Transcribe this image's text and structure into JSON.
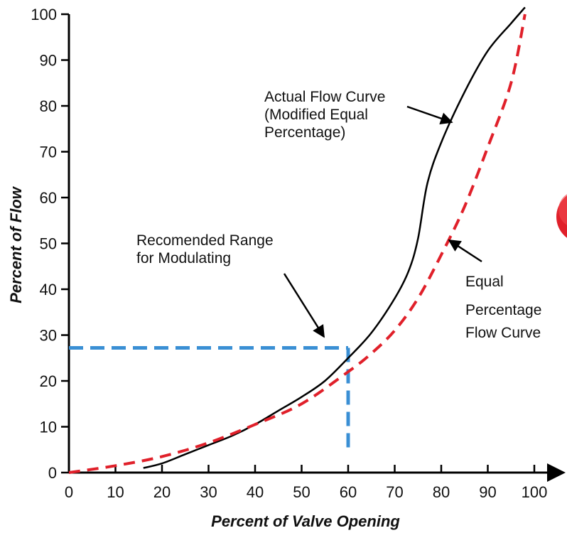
{
  "chart_data": {
    "type": "line",
    "xlabel": "Percent of Valve Opening",
    "ylabel": "Percent of Flow",
    "xlim": [
      0,
      100
    ],
    "ylim": [
      0,
      100
    ],
    "x_ticks": [
      "0",
      "10",
      "20",
      "30",
      "40",
      "50",
      "60",
      "70",
      "80",
      "90",
      "100"
    ],
    "y_ticks": [
      "0",
      "10",
      "20",
      "30",
      "40",
      "50",
      "60",
      "70",
      "80",
      "90",
      "100"
    ],
    "grid": false,
    "series": [
      {
        "name": "Actual Flow Curve (Modified Equal Percentage)",
        "style": "solid",
        "color": "#000000",
        "x": [
          16,
          20,
          25,
          30,
          35,
          40,
          45,
          50,
          55,
          60,
          65,
          70,
          73,
          75,
          77,
          80,
          85,
          90,
          95,
          98
        ],
        "y": [
          1,
          2,
          4,
          6,
          8,
          10.5,
          13.5,
          16.5,
          20,
          25,
          30.5,
          38,
          44,
          51,
          63,
          72,
          83,
          92,
          98,
          101.5
        ]
      },
      {
        "name": "Equal Percentage Flow Curve",
        "style": "dashed",
        "color": "#e0202a",
        "x": [
          0,
          10,
          20,
          30,
          40,
          50,
          60,
          65,
          70,
          75,
          80,
          85,
          90,
          95,
          98
        ],
        "y": [
          0,
          1.5,
          3.5,
          6.5,
          10.5,
          15,
          22,
          26,
          31,
          38,
          47.5,
          58,
          71,
          85,
          100
        ]
      }
    ],
    "recommended_range": {
      "color": "#3a8fd4",
      "x_max": 60,
      "y_max": 27.2
    },
    "annotations": [
      {
        "lines": [
          "Actual Flow Curve",
          "(Modified Equal",
          "Percentage)"
        ],
        "target_x": 83,
        "target_y": 76
      },
      {
        "lines": [
          "Recomended Range",
          "for Modulating"
        ],
        "target_x": 55,
        "target_y": 29
      },
      {
        "lines": [
          "Equal",
          "Percentage",
          "Flow Curve"
        ],
        "target_x": 82,
        "target_y": 50
      }
    ]
  }
}
